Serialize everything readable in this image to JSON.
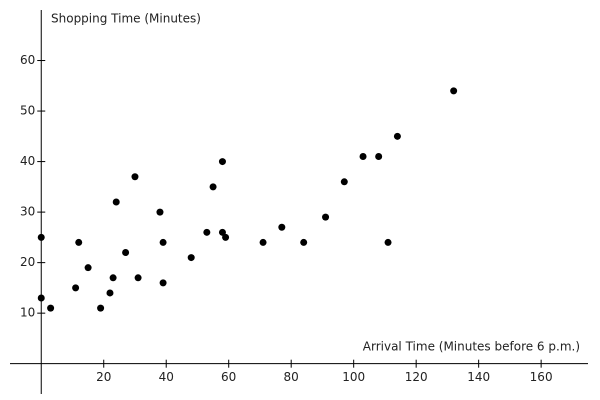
{
  "chart_data": {
    "type": "scatter",
    "xlabel": "Arrival Time (Minutes before 6 p.m.)",
    "ylabel": "Shopping Time (Minutes)",
    "x": [
      0,
      0,
      3,
      11,
      12,
      15,
      19,
      22,
      23,
      24,
      27,
      30,
      31,
      38,
      39,
      39,
      48,
      53,
      55,
      58,
      58,
      59,
      71,
      77,
      84,
      91,
      97,
      103,
      108,
      111,
      114,
      132
    ],
    "values": [
      25,
      13,
      11,
      15,
      24,
      19,
      11,
      14,
      17,
      32,
      22,
      37,
      17,
      30,
      24,
      16,
      21,
      26,
      35,
      26,
      40,
      25,
      24,
      27,
      24,
      29,
      36,
      41,
      41,
      24,
      45,
      54
    ],
    "color": "#000000",
    "xlim": [
      -10,
      175
    ],
    "ylim": [
      -6,
      70
    ],
    "xticks": [
      20,
      40,
      60,
      80,
      100,
      120,
      140,
      160
    ],
    "yticks": [
      10,
      20,
      30,
      40,
      50,
      60
    ],
    "grid": false
  }
}
